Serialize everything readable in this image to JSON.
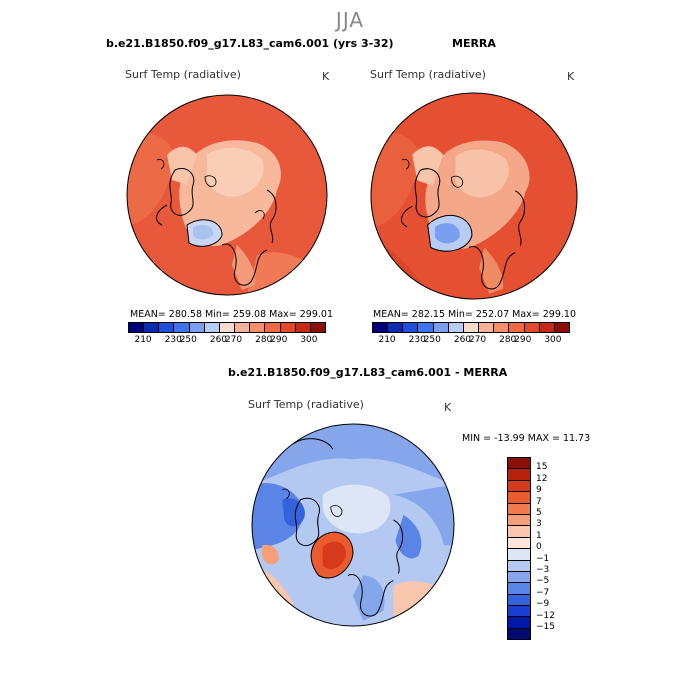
{
  "season_title": "JJA",
  "panels": [
    {
      "title": "b.e21.B1850.f09_g17.L83_cam6.001 (yrs 3-32)",
      "variable": "Surf Temp (radiative)",
      "units": "K",
      "stats": "MEAN= 280.58   Min= 259.08   Max= 299.01"
    },
    {
      "title": "MERRA",
      "variable": "Surf Temp (radiative)",
      "units": "K",
      "stats": "MEAN= 282.15   Min= 252.07   Max= 299.10"
    },
    {
      "title": "b.e21.B1850.f09_g17.L83_cam6.001 - MERRA",
      "variable": "Surf Temp (radiative)",
      "units": "K",
      "stats": "MIN = -13.99  MAX =  11.73"
    }
  ],
  "abs_colorbar": {
    "colors": [
      "#00007d",
      "#0a2ab0",
      "#1f4fd8",
      "#3f74e8",
      "#7a9ef0",
      "#b7cdf5",
      "#f7dcce",
      "#f7b296",
      "#f58e6a",
      "#ee6a44",
      "#e2482a",
      "#c32a16",
      "#8a0f08"
    ],
    "labels": [
      "210",
      "230",
      "250",
      "260",
      "270",
      "280",
      "290",
      "300"
    ]
  },
  "diff_colorbar": {
    "colors": [
      "#8a0f08",
      "#b8200e",
      "#d63a1a",
      "#ec5a30",
      "#f27a4e",
      "#f69e78",
      "#f8c6ac",
      "#fbe6d9",
      "#dce6f7",
      "#b3c9f2",
      "#86a6ec",
      "#5a84e6",
      "#3462dc",
      "#1a3fd0",
      "#0018a8",
      "#000a70"
    ],
    "labels": [
      "15",
      "12",
      "9",
      "7",
      "5",
      "3",
      "1",
      "0",
      "−1",
      "−3",
      "−5",
      "−7",
      "−9",
      "−12",
      "−15"
    ]
  }
}
